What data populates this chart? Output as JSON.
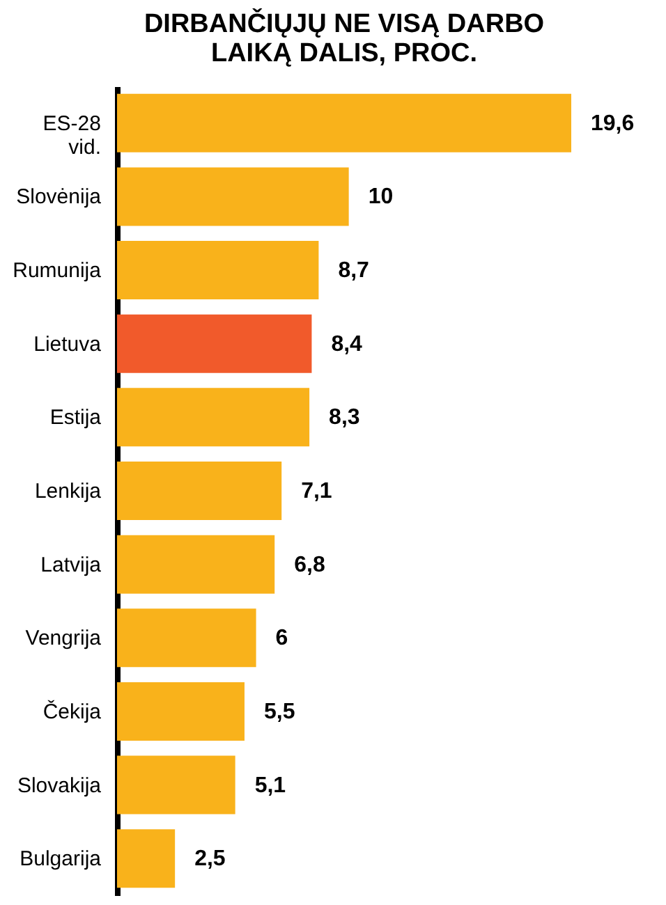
{
  "chart_data": {
    "type": "bar",
    "orientation": "horizontal",
    "title": "DIRBANČIŲJŲ NE VISĄ DARBO LAIKĄ DALIS, PROC.",
    "categories": [
      "ES-28 vid.",
      "Slovėnija",
      "Rumunija",
      "Lietuva",
      "Estija",
      "Lenkija",
      "Latvija",
      "Vengrija",
      "Čekija",
      "Slovakija",
      "Bulgarija"
    ],
    "values": [
      19.6,
      10,
      8.7,
      8.4,
      8.3,
      7.1,
      6.8,
      6,
      5.5,
      5.1,
      2.5
    ],
    "value_labels": [
      "19,6",
      "10",
      "8,7",
      "8,4",
      "8,3",
      "7,1",
      "6,8",
      "6",
      "5,5",
      "5,1",
      "2,5"
    ],
    "colors": [
      "#f9b21b",
      "#f9b21b",
      "#f9b21b",
      "#f15a2b",
      "#f9b21b",
      "#f9b21b",
      "#f9b21b",
      "#f9b21b",
      "#f9b21b",
      "#f9b21b",
      "#f9b21b"
    ]
  }
}
